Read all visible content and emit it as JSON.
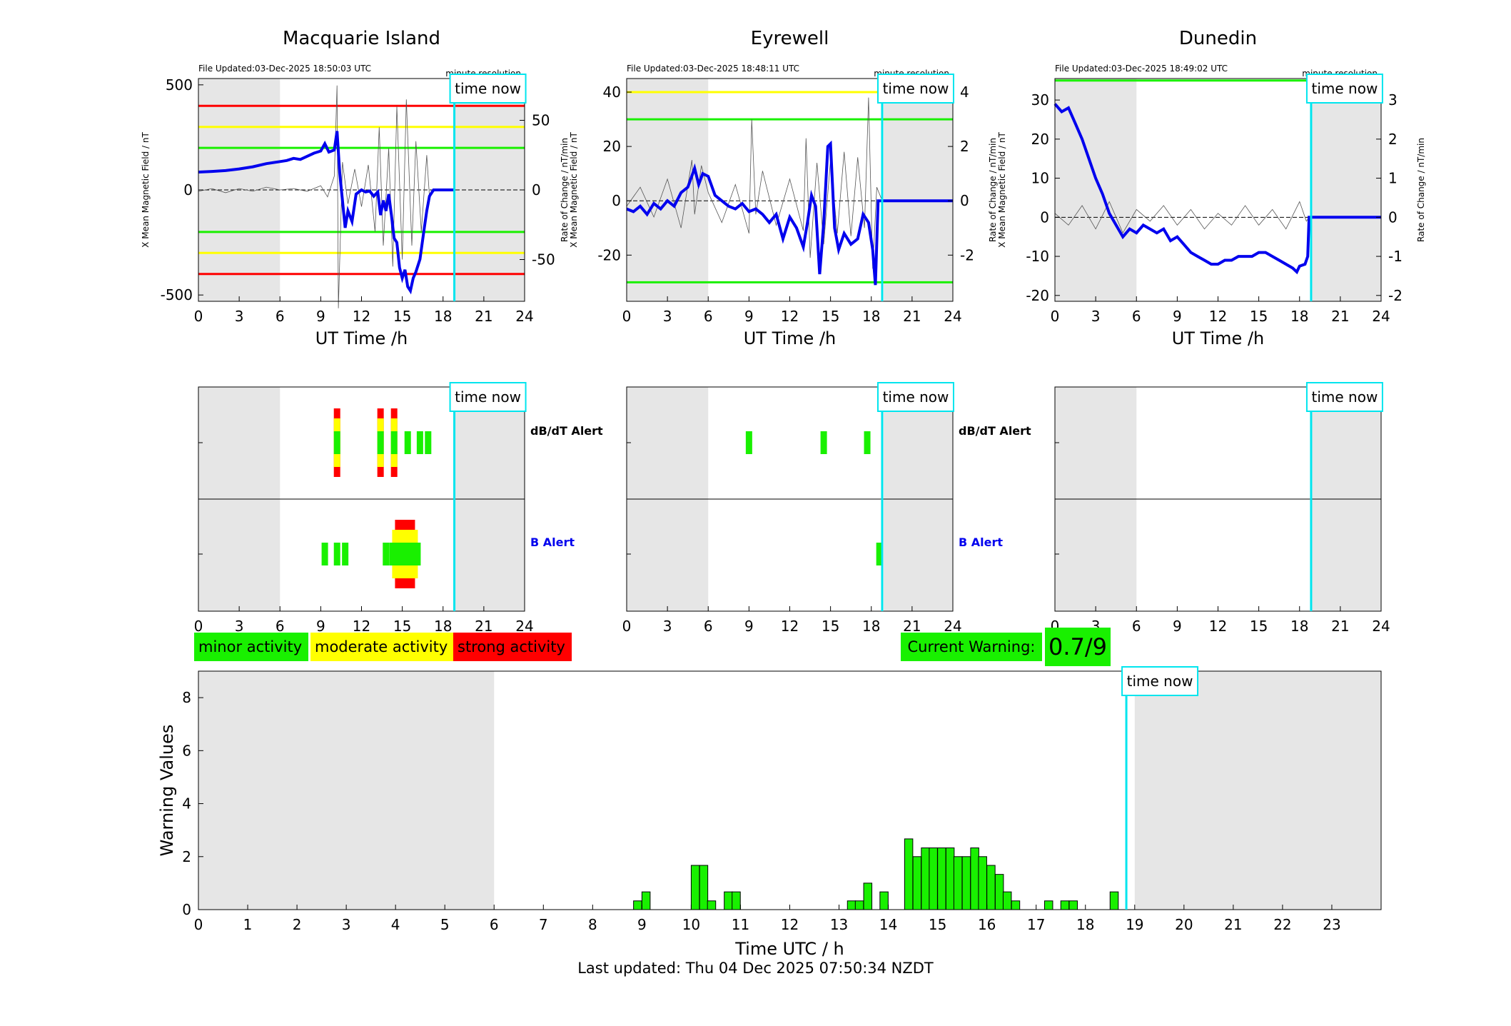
{
  "colors": {
    "minor": "#19f000",
    "moderate": "#ffff00",
    "strong": "#ff0000",
    "field": "#0000ee",
    "timeNow": "#00e5ee",
    "night": "#e6e6e6"
  },
  "legend": {
    "minor": "minor activity",
    "moderate": "moderate activity",
    "strong": "strong activity"
  },
  "current_warning": {
    "label": "Current Warning:",
    "value": "0.7/9"
  },
  "footer": "Last updated: Thu 04 Dec 2025 07:50:34 NZDT",
  "time_now_label": "time now",
  "minute_resolution": "minute resolution",
  "alert_labels": {
    "dbdt": "dB/dT Alert",
    "b": "B Alert"
  },
  "chart_data": [
    {
      "type": "line",
      "title": "Macquarie Island",
      "file_updated": "File Updated:03-Dec-2025 18:50:03 UTC",
      "xlabel": "UT Time /h",
      "ylabel": "X Mean Magnetic Field / nT",
      "y2label": "Rate of Change / nT/min",
      "xlim": [
        0,
        24
      ],
      "xticks": [
        0,
        3,
        6,
        9,
        12,
        15,
        18,
        21,
        24
      ],
      "ylim": [
        -530,
        530
      ],
      "yticks": [
        -500,
        0,
        500
      ],
      "y2lim": [
        -80,
        80
      ],
      "y2ticks": [
        -50,
        0,
        50
      ],
      "night": [
        [
          0,
          6
        ],
        [
          18.9,
          24
        ]
      ],
      "time_now": 18.83,
      "thresholds": [
        {
          "level": "strong",
          "values": [
            400,
            -400
          ]
        },
        {
          "level": "moderate",
          "values": [
            300,
            -300
          ]
        },
        {
          "level": "minor",
          "values": [
            200,
            -200
          ]
        }
      ],
      "field": [
        [
          0,
          85
        ],
        [
          1,
          88
        ],
        [
          2,
          92
        ],
        [
          3,
          100
        ],
        [
          4,
          110
        ],
        [
          5,
          125
        ],
        [
          6,
          135
        ],
        [
          6.5,
          140
        ],
        [
          7,
          150
        ],
        [
          7.5,
          145
        ],
        [
          8,
          160
        ],
        [
          8.5,
          175
        ],
        [
          9,
          185
        ],
        [
          9.3,
          220
        ],
        [
          9.6,
          180
        ],
        [
          10,
          190
        ],
        [
          10.2,
          280
        ],
        [
          10.4,
          80
        ],
        [
          10.6,
          -50
        ],
        [
          10.8,
          -180
        ],
        [
          11,
          -100
        ],
        [
          11.3,
          -150
        ],
        [
          11.6,
          -20
        ],
        [
          12,
          0
        ],
        [
          12.3,
          -10
        ],
        [
          12.6,
          -5
        ],
        [
          12.9,
          -30
        ],
        [
          13.2,
          -10
        ],
        [
          13.4,
          -120
        ],
        [
          13.6,
          -50
        ],
        [
          13.8,
          -100
        ],
        [
          14,
          -20
        ],
        [
          14.2,
          -120
        ],
        [
          14.4,
          -230
        ],
        [
          14.6,
          -250
        ],
        [
          14.8,
          -370
        ],
        [
          15,
          -420
        ],
        [
          15.2,
          -380
        ],
        [
          15.4,
          -460
        ],
        [
          15.6,
          -480
        ],
        [
          15.8,
          -420
        ],
        [
          16,
          -390
        ],
        [
          16.3,
          -330
        ],
        [
          16.6,
          -190
        ],
        [
          16.8,
          -100
        ],
        [
          17,
          -30
        ],
        [
          17.3,
          0
        ],
        [
          18.83,
          0
        ]
      ],
      "rate": [
        [
          0,
          -1
        ],
        [
          1,
          1
        ],
        [
          2,
          -2
        ],
        [
          3,
          1
        ],
        [
          4,
          -1
        ],
        [
          5,
          2
        ],
        [
          6,
          0
        ],
        [
          7,
          1
        ],
        [
          8,
          -1
        ],
        [
          9,
          3
        ],
        [
          9.5,
          -5
        ],
        [
          10,
          10
        ],
        [
          10.2,
          75
        ],
        [
          10.3,
          -85
        ],
        [
          10.6,
          20
        ],
        [
          11,
          -10
        ],
        [
          11.5,
          15
        ],
        [
          12,
          -12
        ],
        [
          12.5,
          18
        ],
        [
          13,
          -30
        ],
        [
          13.3,
          45
        ],
        [
          13.6,
          -40
        ],
        [
          14,
          30
        ],
        [
          14.3,
          -55
        ],
        [
          14.6,
          60
        ],
        [
          15,
          -50
        ],
        [
          15.3,
          65
        ],
        [
          15.7,
          -40
        ],
        [
          16,
          35
        ],
        [
          16.4,
          -30
        ],
        [
          16.8,
          25
        ],
        [
          17,
          -5
        ],
        [
          17.3,
          0
        ]
      ]
    },
    {
      "type": "line",
      "title": "Eyrewell",
      "file_updated": "File Updated:03-Dec-2025 18:48:11 UTC",
      "xlabel": "UT Time /h",
      "ylabel": "X Mean Magnetic Field / nT",
      "y2label": "Rate of Change / nT/min",
      "xlim": [
        0,
        24
      ],
      "xticks": [
        0,
        3,
        6,
        9,
        12,
        15,
        18,
        21,
        24
      ],
      "ylim": [
        -37,
        45
      ],
      "yticks": [
        -20,
        0,
        20,
        40
      ],
      "y2lim": [
        -3.7,
        4.5
      ],
      "y2ticks": [
        -2,
        0,
        2,
        4
      ],
      "night": [
        [
          0,
          6
        ],
        [
          18.9,
          24
        ]
      ],
      "time_now": 18.8,
      "thresholds": [
        {
          "level": "moderate",
          "values": [
            40
          ]
        },
        {
          "level": "minor",
          "values": [
            30,
            -30
          ]
        }
      ],
      "field": [
        [
          0,
          -3
        ],
        [
          0.5,
          -4
        ],
        [
          1,
          -2
        ],
        [
          1.5,
          -5
        ],
        [
          2,
          -1
        ],
        [
          2.5,
          -3
        ],
        [
          3,
          0
        ],
        [
          3.5,
          -2
        ],
        [
          4,
          3
        ],
        [
          4.5,
          5
        ],
        [
          5,
          12
        ],
        [
          5.3,
          6
        ],
        [
          5.6,
          10
        ],
        [
          6,
          9
        ],
        [
          6.5,
          2
        ],
        [
          7,
          0
        ],
        [
          7.5,
          -2
        ],
        [
          8,
          -3
        ],
        [
          8.5,
          -1
        ],
        [
          9,
          -4
        ],
        [
          9.5,
          -3
        ],
        [
          10,
          -5
        ],
        [
          10.5,
          -8
        ],
        [
          11,
          -5
        ],
        [
          11.5,
          -14
        ],
        [
          12,
          -6
        ],
        [
          12.5,
          -10
        ],
        [
          13,
          -17
        ],
        [
          13.3,
          -8
        ],
        [
          13.6,
          2
        ],
        [
          13.9,
          -2
        ],
        [
          14.2,
          -27
        ],
        [
          14.5,
          -8
        ],
        [
          14.8,
          20
        ],
        [
          15,
          21
        ],
        [
          15.3,
          -10
        ],
        [
          15.6,
          -18
        ],
        [
          16,
          -12
        ],
        [
          16.5,
          -16
        ],
        [
          17,
          -14
        ],
        [
          17.4,
          -5
        ],
        [
          17.8,
          -8
        ],
        [
          18.1,
          -18
        ],
        [
          18.3,
          -31
        ],
        [
          18.5,
          0
        ],
        [
          24,
          0
        ]
      ],
      "rate": [
        [
          0,
          -0.2
        ],
        [
          1,
          0.5
        ],
        [
          2,
          -0.6
        ],
        [
          3,
          0.8
        ],
        [
          4,
          -1
        ],
        [
          4.8,
          1.5
        ],
        [
          5,
          -0.5
        ],
        [
          5.5,
          1.3
        ],
        [
          6,
          0.3
        ],
        [
          7,
          -0.8
        ],
        [
          8,
          0.6
        ],
        [
          9,
          -1.2
        ],
        [
          9.2,
          3
        ],
        [
          9.5,
          -0.5
        ],
        [
          10,
          1.1
        ],
        [
          11,
          -0.9
        ],
        [
          12,
          0.8
        ],
        [
          13,
          -1.1
        ],
        [
          13.2,
          2.3
        ],
        [
          13.5,
          -2.1
        ],
        [
          14,
          1.4
        ],
        [
          14.5,
          -1.6
        ],
        [
          15,
          1.5
        ],
        [
          15.5,
          -1.2
        ],
        [
          16,
          1.8
        ],
        [
          16.5,
          -1.3
        ],
        [
          17,
          1.6
        ],
        [
          17.5,
          -1
        ],
        [
          17.8,
          3.8
        ],
        [
          18.1,
          -2.5
        ],
        [
          18.4,
          0.5
        ],
        [
          18.8,
          0
        ]
      ]
    },
    {
      "type": "line",
      "title": "Dunedin",
      "file_updated": "File Updated:03-Dec-2025 18:49:02 UTC",
      "xlabel": "UT Time /h",
      "ylabel": "X Mean Magnetic Field / nT",
      "y2label": "Rate of Change / nT/min",
      "xlim": [
        0,
        24
      ],
      "xticks": [
        0,
        3,
        6,
        9,
        12,
        15,
        18,
        21,
        24
      ],
      "ylim": [
        -21.5,
        35.5
      ],
      "yticks": [
        -20,
        -10,
        0,
        10,
        20,
        30
      ],
      "y2lim": [
        -2.15,
        3.55
      ],
      "y2ticks": [
        -2,
        -1,
        0,
        1,
        2,
        3
      ],
      "night": [
        [
          0,
          6
        ],
        [
          18.9,
          24
        ]
      ],
      "time_now": 18.85,
      "thresholds": [
        {
          "level": "minor",
          "values": [
            35
          ]
        }
      ],
      "field": [
        [
          0,
          29
        ],
        [
          0.5,
          27
        ],
        [
          1,
          28
        ],
        [
          1.5,
          24
        ],
        [
          2,
          20
        ],
        [
          2.5,
          15
        ],
        [
          3,
          10
        ],
        [
          3.5,
          6
        ],
        [
          4,
          1
        ],
        [
          4.5,
          -2
        ],
        [
          5,
          -5
        ],
        [
          5.5,
          -3
        ],
        [
          6,
          -4
        ],
        [
          6.5,
          -2
        ],
        [
          7,
          -3
        ],
        [
          7.5,
          -4
        ],
        [
          8,
          -3
        ],
        [
          8.5,
          -6
        ],
        [
          9,
          -5
        ],
        [
          9.5,
          -7
        ],
        [
          10,
          -9
        ],
        [
          10.5,
          -10
        ],
        [
          11,
          -11
        ],
        [
          11.5,
          -12
        ],
        [
          12,
          -12
        ],
        [
          12.5,
          -11
        ],
        [
          13,
          -11
        ],
        [
          13.5,
          -10
        ],
        [
          14,
          -10
        ],
        [
          14.5,
          -10
        ],
        [
          15,
          -9
        ],
        [
          15.5,
          -9
        ],
        [
          16,
          -10
        ],
        [
          16.5,
          -11
        ],
        [
          17,
          -12
        ],
        [
          17.5,
          -13
        ],
        [
          17.8,
          -14
        ],
        [
          18,
          -12.5
        ],
        [
          18.4,
          -12
        ],
        [
          18.6,
          -10
        ],
        [
          18.7,
          0
        ],
        [
          24,
          0
        ]
      ],
      "rate": [
        [
          0,
          0.1
        ],
        [
          1,
          -0.2
        ],
        [
          2,
          0.3
        ],
        [
          3,
          -0.3
        ],
        [
          4,
          0.4
        ],
        [
          5,
          -0.4
        ],
        [
          6,
          0.2
        ],
        [
          7,
          -0.1
        ],
        [
          8,
          0.3
        ],
        [
          9,
          -0.2
        ],
        [
          10,
          0.2
        ],
        [
          11,
          -0.3
        ],
        [
          12,
          0.1
        ],
        [
          13,
          -0.2
        ],
        [
          14,
          0.3
        ],
        [
          15,
          -0.2
        ],
        [
          16,
          0.2
        ],
        [
          17,
          -0.3
        ],
        [
          18,
          0.4
        ],
        [
          18.5,
          -0.1
        ],
        [
          18.7,
          0
        ]
      ]
    },
    {
      "type": "bar",
      "title": "dB/dT Alert / B Alert — Macquarie Island",
      "xlim": [
        0,
        24
      ],
      "xticks": [
        0,
        3,
        6,
        9,
        12,
        15,
        18,
        21,
        24
      ],
      "night": [
        [
          0,
          6
        ],
        [
          18.9,
          24
        ]
      ],
      "time_now": 18.83,
      "dbdt": [
        [
          10.2,
          3
        ],
        [
          13.4,
          3
        ],
        [
          14.4,
          3
        ],
        [
          15.4,
          1
        ],
        [
          16.3,
          1
        ],
        [
          16.9,
          1
        ]
      ],
      "b": [
        [
          9.3,
          1
        ],
        [
          10.2,
          1
        ],
        [
          10.8,
          1
        ],
        [
          13.8,
          1
        ],
        [
          15.2,
          3
        ]
      ]
    },
    {
      "type": "bar",
      "title": "dB/dT Alert / B Alert — Eyrewell",
      "xlim": [
        0,
        24
      ],
      "xticks": [
        0,
        3,
        6,
        9,
        12,
        15,
        18,
        21,
        24
      ],
      "night": [
        [
          0,
          6
        ],
        [
          18.9,
          24
        ]
      ],
      "time_now": 18.8,
      "dbdt": [
        [
          9,
          1
        ],
        [
          14.5,
          1
        ],
        [
          17.7,
          1
        ]
      ],
      "b": [
        [
          18.6,
          1
        ]
      ]
    },
    {
      "type": "bar",
      "title": "dB/dT Alert / B Alert — Dunedin",
      "xlim": [
        0,
        24
      ],
      "xticks": [
        0,
        3,
        6,
        9,
        12,
        15,
        18,
        21,
        24
      ],
      "night": [
        [
          0,
          6
        ],
        [
          18.9,
          24
        ]
      ],
      "time_now": 18.85,
      "dbdt": [],
      "b": []
    },
    {
      "type": "bar",
      "title": "",
      "xlabel": "Time UTC / h",
      "ylabel": "Warning Values",
      "xlim": [
        0,
        24
      ],
      "xticks": [
        0,
        1,
        2,
        3,
        4,
        5,
        6,
        7,
        8,
        9,
        10,
        11,
        12,
        13,
        14,
        15,
        16,
        17,
        18,
        19,
        20,
        21,
        22,
        23
      ],
      "ylim": [
        0,
        9
      ],
      "yticks": [
        0,
        2,
        4,
        6,
        8
      ],
      "night": [
        [
          0,
          6
        ],
        [
          19,
          24
        ]
      ],
      "time_now": 18.83,
      "x": [
        8.83,
        9,
        10,
        10.17,
        10.33,
        10.67,
        10.83,
        13.17,
        13.33,
        13.5,
        13.83,
        14.33,
        14.5,
        14.67,
        14.83,
        15,
        15.17,
        15.33,
        15.5,
        15.67,
        15.83,
        16,
        16.17,
        16.33,
        16.5,
        17.17,
        17.5,
        17.67,
        18.5
      ],
      "values": [
        0.33,
        0.67,
        1.67,
        1.67,
        0.33,
        0.67,
        0.67,
        0.33,
        0.33,
        1,
        0.67,
        2.67,
        2,
        2.33,
        2.33,
        2.33,
        2.33,
        2,
        2,
        2.33,
        2,
        1.67,
        1.33,
        0.67,
        0.33,
        0.33,
        0.33,
        0.33,
        0.67
      ]
    }
  ]
}
